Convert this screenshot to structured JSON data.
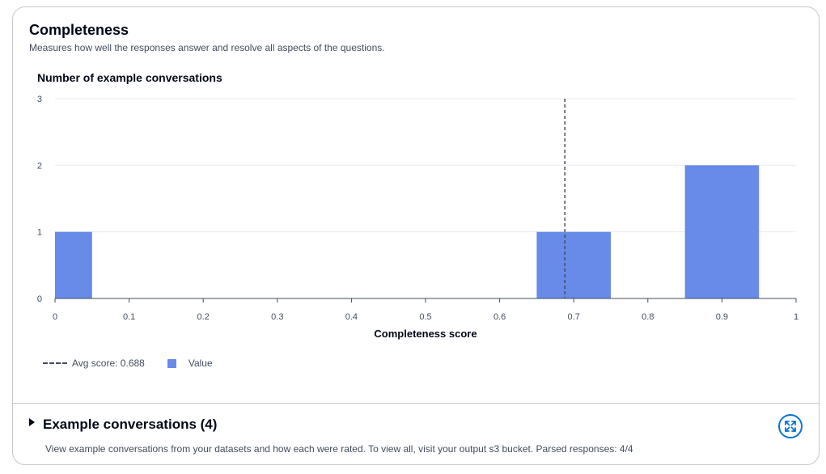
{
  "card": {
    "title": "Completeness",
    "subtitle": "Measures how well the responses answer and resolve all aspects of the questions."
  },
  "chart_data": {
    "type": "bar",
    "title": "Number of example conversations",
    "xlabel": "Completeness score",
    "ylabel": "Number of example conversations",
    "xlim": [
      0,
      1
    ],
    "ylim": [
      0,
      3
    ],
    "x_ticks": [
      "0",
      "0.1",
      "0.2",
      "0.3",
      "0.4",
      "0.5",
      "0.6",
      "0.7",
      "0.8",
      "0.9",
      "1"
    ],
    "y_ticks": [
      "0",
      "1",
      "2",
      "3"
    ],
    "bars": [
      {
        "x_start": 0.0,
        "x_end": 0.05,
        "value": 1
      },
      {
        "x_start": 0.65,
        "x_end": 0.75,
        "value": 1
      },
      {
        "x_start": 0.85,
        "x_end": 0.95,
        "value": 2
      }
    ],
    "avg_score": 0.688,
    "grid": true,
    "legend_position": "bottom-left",
    "bar_color": "#688ae8",
    "legend": {
      "avg_label": "Avg score: 0.688",
      "value_label": "Value"
    }
  },
  "examples": {
    "title": "Example conversations (4)",
    "description": "View example conversations from your datasets and how each were rated. To view all, visit your output s3 bucket. Parsed responses: 4/4",
    "expand_icon": "expand-icon",
    "accent_color": "#0972d3"
  }
}
